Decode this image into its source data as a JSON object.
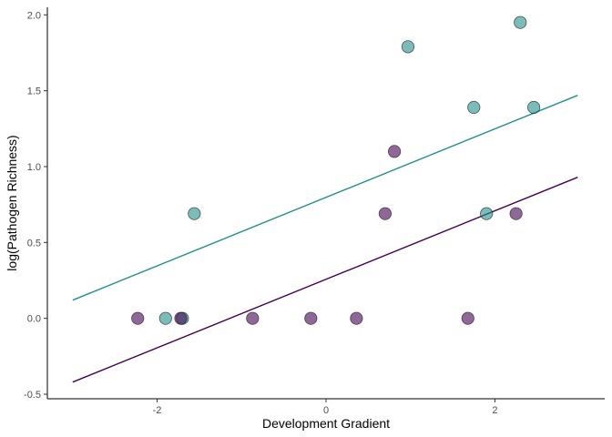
{
  "chart_data": {
    "type": "scatter",
    "title": "",
    "xlabel": "Development Gradient",
    "ylabel": "log(Pathogen Richness)",
    "xlim": [
      -3.3,
      3.3
    ],
    "ylim": [
      -0.53,
      2.05
    ],
    "x_ticks": [
      -2,
      0,
      2
    ],
    "x_tick_labels": [
      "-2",
      "0",
      "2"
    ],
    "y_ticks": [
      -0.5,
      0,
      0.5,
      1,
      1.5,
      2
    ],
    "y_tick_labels": [
      "-0.5",
      "0.0",
      "0.5",
      "1.0",
      "1.5",
      "2.0"
    ],
    "grid": false,
    "legend": "none",
    "series": [
      {
        "color": "#21908C",
        "points": [
          {
            "x": -1.9,
            "y": 0.0
          },
          {
            "x": -1.7,
            "y": 0.0
          },
          {
            "x": -1.56,
            "y": 0.69
          },
          {
            "x": 0.97,
            "y": 1.79
          },
          {
            "x": 1.75,
            "y": 1.39
          },
          {
            "x": 1.9,
            "y": 0.69
          },
          {
            "x": 2.3,
            "y": 1.95
          },
          {
            "x": 2.46,
            "y": 1.39
          }
        ],
        "trend": {
          "x": [
            -3.0,
            2.98
          ],
          "y": [
            0.12,
            1.47
          ]
        }
      },
      {
        "color": "#440154",
        "points": [
          {
            "x": -2.23,
            "y": 0.0
          },
          {
            "x": -1.72,
            "y": 0.0
          },
          {
            "x": -0.87,
            "y": 0.0
          },
          {
            "x": -0.18,
            "y": 0.0
          },
          {
            "x": 0.36,
            "y": 0.0
          },
          {
            "x": 0.7,
            "y": 0.69
          },
          {
            "x": 0.81,
            "y": 1.1
          },
          {
            "x": 1.68,
            "y": 0.0
          },
          {
            "x": 2.25,
            "y": 0.69
          }
        ],
        "trend": {
          "x": [
            -3.0,
            2.98
          ],
          "y": [
            -0.42,
            0.93
          ]
        }
      }
    ]
  }
}
